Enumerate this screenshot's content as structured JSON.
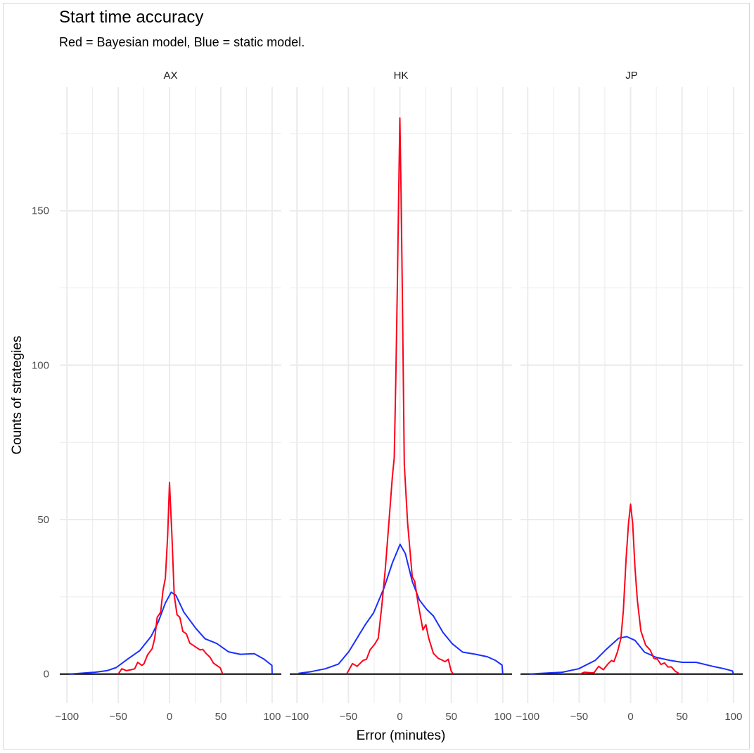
{
  "chart_data": {
    "type": "line",
    "title": "Start time accuracy",
    "subtitle": "Red = Bayesian model, Blue = static model.",
    "xlabel": "Error (minutes)",
    "ylabel": "Counts of strategies",
    "xlim": [
      -107,
      109
    ],
    "ylim": [
      -9.4,
      190
    ],
    "x_ticks": [
      -100,
      -50,
      0,
      50,
      100
    ],
    "x_tick_labels": [
      "−100",
      "−50",
      "0",
      "50",
      "100"
    ],
    "y_ticks": [
      0,
      50,
      100,
      150
    ],
    "y_tick_labels": [
      "0",
      "50",
      "100",
      "150"
    ],
    "grid": true,
    "legend": "none",
    "colors": {
      "bayesian": "#ff0019",
      "static": "#1a2eff",
      "baseline": "#000000",
      "grid": "#ebebeb"
    },
    "facets": [
      {
        "label": "AX",
        "series": [
          {
            "name": "Bayesian model",
            "color_key": "bayesian",
            "x": [
              -50,
              -46.5,
              -42,
              -36,
              -34,
              -31,
              -27,
              -25,
              -21.5,
              -17,
              -14.4,
              -12,
              -8.7,
              -6.4,
              -4.1,
              -1.8,
              0,
              2.3,
              4.6,
              7.3,
              10,
              13,
              16.4,
              19.8,
              23,
              26.7,
              29.7,
              32.4,
              35.8,
              39.3,
              42.7,
              46,
              49.5,
              51.8
            ],
            "y": [
              0,
              1.7,
              1.1,
              1.5,
              1.7,
              3.8,
              2.8,
              3.3,
              6.2,
              8.2,
              11.6,
              18.4,
              20,
              27,
              31,
              45,
              62,
              45,
              25.5,
              19.2,
              18.4,
              13.8,
              13,
              10,
              9.3,
              8.5,
              7.8,
              8,
              6.6,
              5.5,
              3.6,
              2.8,
              2,
              0
            ]
          },
          {
            "name": "Static model",
            "color_key": "static",
            "x": [
              -97.7,
              -72.6,
              -61,
              -52,
              -40.6,
              -29,
              -17.8,
              -11,
              -4.1,
              1.6,
              6.2,
              14,
              25.6,
              34.7,
              46,
              57.5,
              69,
              82.6,
              91.8,
              99.8,
              100
            ],
            "y": [
              0,
              0.6,
              1.1,
              2.1,
              4.9,
              7.6,
              12.3,
              16.9,
              23,
              26.5,
              25.5,
              20,
              14.8,
              11.4,
              9.9,
              7.2,
              6.4,
              6.6,
              4.9,
              2.8,
              0
            ]
          }
        ]
      },
      {
        "label": "HK",
        "series": [
          {
            "name": "Bayesian model",
            "color_key": "bayesian",
            "x": [
              -51.8,
              -46,
              -41.6,
              -35.8,
              -32.4,
              -29,
              -24.4,
              -21,
              -17.6,
              -14.2,
              -10.7,
              -7.3,
              -5.5,
              -4,
              -2.5,
              -1.2,
              0,
              1.2,
              2.5,
              3.5,
              4.3,
              7.5,
              12,
              14.4,
              17.8,
              22.4,
              25.3,
              28,
              32.6,
              37.2,
              41.8,
              44,
              47,
              49.8,
              52
            ],
            "y": [
              0,
              3.4,
              2.5,
              4.4,
              4.8,
              7.8,
              9.7,
              11.6,
              22,
              34,
              49,
              64,
              70,
              95,
              125,
              155,
              180,
              155,
              120,
              90,
              68,
              49,
              31.5,
              30,
              22.7,
              14.3,
              16,
              11.6,
              6.7,
              5.1,
              4.4,
              4,
              4.8,
              1,
              0
            ]
          },
          {
            "name": "Static model",
            "color_key": "static",
            "x": [
              -98.6,
              -86,
              -72.4,
              -59.8,
              -49.5,
              -33.6,
              -25.6,
              -15.3,
              -7.3,
              0.2,
              5.3,
              12,
              19,
              25.8,
              32.6,
              41.8,
              51,
              61,
              73.7,
              85,
              93,
              99.3,
              100
            ],
            "y": [
              0.2,
              0.8,
              1.7,
              3.2,
              7.3,
              16,
              19.8,
              28,
              36,
              42,
              39,
              30,
              24,
              21,
              18.8,
              13.5,
              9.8,
              7.1,
              6.4,
              5.6,
              4.4,
              2.9,
              0
            ]
          }
        ]
      },
      {
        "label": "JP",
        "series": [
          {
            "name": "Bayesian model",
            "color_key": "bayesian",
            "x": [
              -49.3,
              -44.7,
              -39,
              -35.6,
              -31,
              -26.5,
              -22,
              -18.5,
              -16.2,
              -12.8,
              -9.4,
              -7,
              -4.3,
              -2,
              0,
              2,
              4.3,
              6.6,
              10,
              14.6,
              19,
              22.6,
              26,
              29.5,
              32.9,
              36.3,
              39.7,
              43.2,
              47.7
            ],
            "y": [
              0,
              0.6,
              0.4,
              0.4,
              2.5,
              1.4,
              3.3,
              4.4,
              4,
              7.1,
              11.6,
              20.7,
              37.5,
              48.8,
              55,
              48.8,
              34.4,
              23.8,
              13.9,
              9.4,
              7.8,
              5.1,
              4.8,
              3.1,
              3.6,
              2.3,
              2.3,
              1,
              0
            ]
          },
          {
            "name": "Static model",
            "color_key": "static",
            "x": [
              -98.4,
              -66.4,
              -50.5,
              -34.5,
              -23,
              -11.6,
              -3.7,
              4.3,
              13.5,
              24.9,
              38.6,
              50,
              63.7,
              79.7,
              91,
              99,
              100
            ],
            "y": [
              0,
              0.6,
              1.7,
              4.4,
              8.2,
              11.6,
              12.1,
              10.9,
              7.1,
              5.4,
              4.4,
              3.8,
              3.8,
              2.5,
              1.7,
              1,
              0
            ]
          }
        ]
      }
    ]
  }
}
